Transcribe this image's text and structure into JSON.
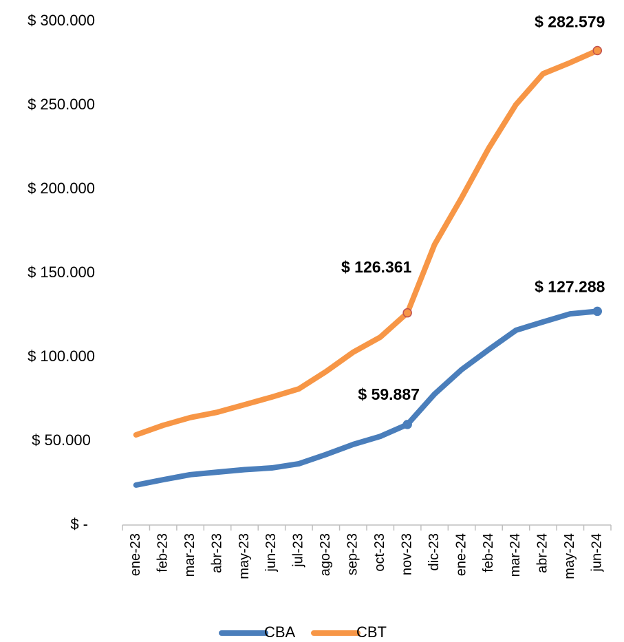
{
  "chart_data": {
    "type": "line",
    "categories": [
      "ene-23",
      "feb-23",
      "mar-23",
      "abr-23",
      "may-23",
      "jun-23",
      "jul-23",
      "ago-23",
      "sep-23",
      "oct-23",
      "nov-23",
      "dic-23",
      "ene-24",
      "feb-24",
      "mar-24",
      "abr-24",
      "may-24",
      "jun-24"
    ],
    "series": [
      {
        "name": "CBA",
        "color": "#4a7ebb",
        "label_color": "#1f73bf",
        "values": [
          23800,
          27000,
          30000,
          31500,
          33000,
          34000,
          36500,
          42000,
          48000,
          52800,
          59887,
          78000,
          92600,
          104500,
          116000,
          121000,
          125800,
          127288
        ],
        "value_labels": [
          null,
          null,
          null,
          null,
          null,
          null,
          null,
          null,
          null,
          null,
          "$ 59.887",
          null,
          null,
          null,
          null,
          null,
          null,
          "$ 127.288"
        ]
      },
      {
        "name": "CBT",
        "color": "#f79646",
        "label_color": "#f79646",
        "values": [
          53700,
          59400,
          64000,
          67200,
          71700,
          76200,
          81100,
          91400,
          102900,
          111900,
          126361,
          167000,
          195000,
          224500,
          250400,
          268800,
          275400,
          282579
        ],
        "value_labels": [
          null,
          null,
          null,
          null,
          null,
          null,
          null,
          null,
          null,
          null,
          "$ 126.361",
          null,
          null,
          null,
          null,
          null,
          null,
          "$ 282.579"
        ]
      }
    ],
    "ylim": [
      0,
      300000
    ],
    "yticks": [
      {
        "value": 0,
        "label": "$ -"
      },
      {
        "value": 50000,
        "label": "$ 50.000"
      },
      {
        "value": 100000,
        "label": "$ 100.000"
      },
      {
        "value": 150000,
        "label": "$ 150.000"
      },
      {
        "value": 200000,
        "label": "$ 200.000"
      },
      {
        "value": 250000,
        "label": "$ 250.000"
      },
      {
        "value": 300000,
        "label": "$ 300.000"
      }
    ],
    "grid": false,
    "legend": "bottom"
  }
}
